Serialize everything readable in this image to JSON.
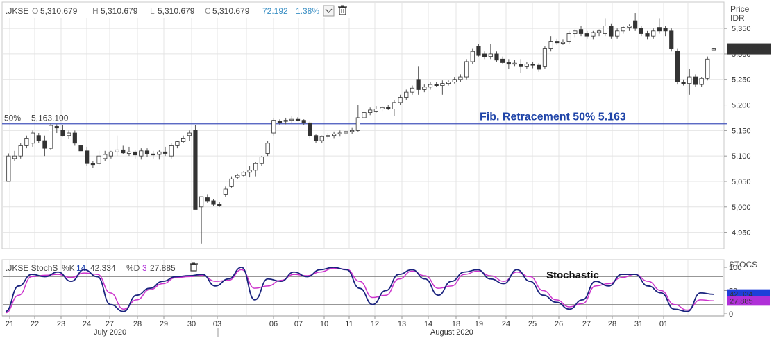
{
  "price_header": {
    "symbol": ".JKSE",
    "o_label": "O",
    "o_value": "5,310.679",
    "h_label": "H",
    "h_value": "5,310.679",
    "l_label": "L",
    "l_value": "5,310.679",
    "c_label": "C",
    "c_value": "5,310.679",
    "change": "72.192",
    "change_pct": "1.38%"
  },
  "price_axis_title": [
    "Price",
    "IDR"
  ],
  "fib": {
    "level_label": "50%",
    "level_value_label": "5,163.100",
    "annotation": "Fib. Retracement 50%  5.163",
    "value": 5163.1
  },
  "last_price_tag": "5,310.679",
  "stoch_header": {
    "name": ".JKSE StochS",
    "k_label": "%K",
    "k_period": "14",
    "k_value": "42.334",
    "d_label": "%D",
    "d_period": "3",
    "d_value": "27.885"
  },
  "stoch_axis_title": "STOCS",
  "stoch_annotation": "Stochastic",
  "stoch_tags": {
    "k": "42.334",
    "d": "27.885"
  },
  "month_labels": [
    "July 2020",
    "August 2020"
  ],
  "colors": {
    "k_line": "#1a237e",
    "d_line": "#cc33cc",
    "fib_line": "#4455bb",
    "tag_k": "#1e3fd9",
    "tag_d": "#b030d8",
    "change": "#3a8fc4"
  },
  "chart_data": [
    {
      "type": "candlestick",
      "ylabel": "Price IDR",
      "ylim": [
        4925,
        5395
      ],
      "yticks": [
        4950,
        5000,
        5050,
        5100,
        5150,
        5200,
        5250,
        5300,
        5350
      ],
      "ytick_labels": [
        "4,950",
        "5,000",
        "5,050",
        "5,100",
        "5,150",
        "5,200",
        "5,250",
        "5,300",
        "5,350"
      ],
      "xtick_labels": [
        "21",
        "22",
        "23",
        "24",
        "27",
        "28",
        "29",
        "30",
        "03",
        "06",
        "07",
        "10",
        "11",
        "12",
        "13",
        "14",
        "18",
        "19",
        "24",
        "25",
        "26",
        "27",
        "28",
        "31",
        "01"
      ],
      "candles": [
        {
          "o": 5050,
          "h": 5105,
          "l": 5050,
          "c": 5100
        },
        {
          "o": 5095,
          "h": 5110,
          "l": 5090,
          "c": 5100
        },
        {
          "o": 5100,
          "h": 5125,
          "l": 5095,
          "c": 5120
        },
        {
          "o": 5120,
          "h": 5140,
          "l": 5115,
          "c": 5135
        },
        {
          "o": 5125,
          "h": 5150,
          "l": 5118,
          "c": 5145
        },
        {
          "o": 5140,
          "h": 5145,
          "l": 5125,
          "c": 5130
        },
        {
          "o": 5130,
          "h": 5140,
          "l": 5100,
          "c": 5115
        },
        {
          "o": 5115,
          "h": 5165,
          "l": 5112,
          "c": 5160
        },
        {
          "o": 5158,
          "h": 5162,
          "l": 5145,
          "c": 5155
        },
        {
          "o": 5150,
          "h": 5160,
          "l": 5138,
          "c": 5140
        },
        {
          "o": 5140,
          "h": 5150,
          "l": 5133,
          "c": 5145
        },
        {
          "o": 5145,
          "h": 5150,
          "l": 5120,
          "c": 5125
        },
        {
          "o": 5120,
          "h": 5130,
          "l": 5105,
          "c": 5110
        },
        {
          "o": 5110,
          "h": 5118,
          "l": 5080,
          "c": 5085
        },
        {
          "o": 5085,
          "h": 5090,
          "l": 5077,
          "c": 5083
        },
        {
          "o": 5085,
          "h": 5110,
          "l": 5082,
          "c": 5100
        },
        {
          "o": 5095,
          "h": 5110,
          "l": 5090,
          "c": 5103
        },
        {
          "o": 5100,
          "h": 5110,
          "l": 5095,
          "c": 5108
        },
        {
          "o": 5108,
          "h": 5140,
          "l": 5100,
          "c": 5112
        },
        {
          "o": 5112,
          "h": 5120,
          "l": 5104,
          "c": 5106
        },
        {
          "o": 5105,
          "h": 5118,
          "l": 5100,
          "c": 5108
        },
        {
          "o": 5108,
          "h": 5112,
          "l": 5095,
          "c": 5102
        },
        {
          "o": 5100,
          "h": 5115,
          "l": 5093,
          "c": 5110
        },
        {
          "o": 5110,
          "h": 5115,
          "l": 5098,
          "c": 5104
        },
        {
          "o": 5104,
          "h": 5110,
          "l": 5095,
          "c": 5103
        },
        {
          "o": 5103,
          "h": 5112,
          "l": 5093,
          "c": 5108
        },
        {
          "o": 5108,
          "h": 5118,
          "l": 5100,
          "c": 5105
        },
        {
          "o": 5100,
          "h": 5125,
          "l": 5095,
          "c": 5120
        },
        {
          "o": 5120,
          "h": 5130,
          "l": 5115,
          "c": 5128
        },
        {
          "o": 5128,
          "h": 5140,
          "l": 5125,
          "c": 5135
        },
        {
          "o": 5140,
          "h": 5150,
          "l": 5130,
          "c": 5145
        },
        {
          "o": 5150,
          "h": 5160,
          "l": 4995,
          "c": 4995
        },
        {
          "o": 5000,
          "h": 5020,
          "l": 4928,
          "c": 5020
        },
        {
          "o": 5018,
          "h": 5025,
          "l": 5008,
          "c": 5012
        },
        {
          "o": 5012,
          "h": 5015,
          "l": 5002,
          "c": 5005
        },
        {
          "o": 5005,
          "h": 5010,
          "l": 5000,
          "c": 5003
        },
        {
          "o": 5025,
          "h": 5040,
          "l": 5020,
          "c": 5035
        },
        {
          "o": 5040,
          "h": 5060,
          "l": 5038,
          "c": 5055
        },
        {
          "o": 5058,
          "h": 5065,
          "l": 5055,
          "c": 5062
        },
        {
          "o": 5062,
          "h": 5070,
          "l": 5060,
          "c": 5068
        },
        {
          "o": 5068,
          "h": 5080,
          "l": 5058,
          "c": 5072
        },
        {
          "o": 5072,
          "h": 5088,
          "l": 5060,
          "c": 5085
        },
        {
          "o": 5085,
          "h": 5100,
          "l": 5080,
          "c": 5098
        },
        {
          "o": 5105,
          "h": 5130,
          "l": 5100,
          "c": 5125
        },
        {
          "o": 5145,
          "h": 5175,
          "l": 5140,
          "c": 5170
        },
        {
          "o": 5168,
          "h": 5172,
          "l": 5160,
          "c": 5165
        },
        {
          "o": 5168,
          "h": 5175,
          "l": 5162,
          "c": 5170
        },
        {
          "o": 5170,
          "h": 5178,
          "l": 5165,
          "c": 5172
        },
        {
          "o": 5172,
          "h": 5176,
          "l": 5168,
          "c": 5170
        },
        {
          "o": 5170,
          "h": 5172,
          "l": 5160,
          "c": 5165
        },
        {
          "o": 5165,
          "h": 5168,
          "l": 5135,
          "c": 5140
        },
        {
          "o": 5140,
          "h": 5142,
          "l": 5125,
          "c": 5130
        },
        {
          "o": 5130,
          "h": 5140,
          "l": 5125,
          "c": 5138
        },
        {
          "o": 5138,
          "h": 5145,
          "l": 5133,
          "c": 5140
        },
        {
          "o": 5140,
          "h": 5148,
          "l": 5135,
          "c": 5143
        },
        {
          "o": 5143,
          "h": 5150,
          "l": 5138,
          "c": 5145
        },
        {
          "o": 5145,
          "h": 5152,
          "l": 5140,
          "c": 5148
        },
        {
          "o": 5148,
          "h": 5155,
          "l": 5143,
          "c": 5150
        },
        {
          "o": 5150,
          "h": 5200,
          "l": 5148,
          "c": 5175
        },
        {
          "o": 5175,
          "h": 5190,
          "l": 5170,
          "c": 5185
        },
        {
          "o": 5185,
          "h": 5195,
          "l": 5180,
          "c": 5190
        },
        {
          "o": 5188,
          "h": 5198,
          "l": 5185,
          "c": 5192
        },
        {
          "o": 5192,
          "h": 5198,
          "l": 5188,
          "c": 5195
        },
        {
          "o": 5195,
          "h": 5200,
          "l": 5190,
          "c": 5192
        },
        {
          "o": 5192,
          "h": 5210,
          "l": 5178,
          "c": 5205
        },
        {
          "o": 5205,
          "h": 5220,
          "l": 5200,
          "c": 5215
        },
        {
          "o": 5215,
          "h": 5230,
          "l": 5210,
          "c": 5225
        },
        {
          "o": 5225,
          "h": 5238,
          "l": 5220,
          "c": 5233
        },
        {
          "o": 5250,
          "h": 5275,
          "l": 5220,
          "c": 5230
        },
        {
          "o": 5230,
          "h": 5240,
          "l": 5225,
          "c": 5235
        },
        {
          "o": 5235,
          "h": 5245,
          "l": 5230,
          "c": 5240
        },
        {
          "o": 5240,
          "h": 5245,
          "l": 5235,
          "c": 5238
        },
        {
          "o": 5238,
          "h": 5248,
          "l": 5220,
          "c": 5242
        },
        {
          "o": 5242,
          "h": 5248,
          "l": 5238,
          "c": 5245
        },
        {
          "o": 5245,
          "h": 5255,
          "l": 5242,
          "c": 5250
        },
        {
          "o": 5250,
          "h": 5260,
          "l": 5245,
          "c": 5255
        },
        {
          "o": 5255,
          "h": 5290,
          "l": 5250,
          "c": 5285
        },
        {
          "o": 5285,
          "h": 5310,
          "l": 5280,
          "c": 5305
        },
        {
          "o": 5315,
          "h": 5320,
          "l": 5295,
          "c": 5297
        },
        {
          "o": 5300,
          "h": 5305,
          "l": 5290,
          "c": 5295
        },
        {
          "o": 5295,
          "h": 5320,
          "l": 5290,
          "c": 5300
        },
        {
          "o": 5300,
          "h": 5305,
          "l": 5285,
          "c": 5288
        },
        {
          "o": 5290,
          "h": 5295,
          "l": 5280,
          "c": 5283
        },
        {
          "o": 5283,
          "h": 5290,
          "l": 5270,
          "c": 5280
        },
        {
          "o": 5280,
          "h": 5288,
          "l": 5275,
          "c": 5282
        },
        {
          "o": 5280,
          "h": 5290,
          "l": 5262,
          "c": 5275
        },
        {
          "o": 5275,
          "h": 5285,
          "l": 5270,
          "c": 5280
        },
        {
          "o": 5280,
          "h": 5285,
          "l": 5272,
          "c": 5278
        },
        {
          "o": 5278,
          "h": 5282,
          "l": 5265,
          "c": 5270
        },
        {
          "o": 5275,
          "h": 5315,
          "l": 5270,
          "c": 5310
        },
        {
          "o": 5310,
          "h": 5335,
          "l": 5305,
          "c": 5325
        },
        {
          "o": 5325,
          "h": 5330,
          "l": 5318,
          "c": 5322
        },
        {
          "o": 5322,
          "h": 5328,
          "l": 5318,
          "c": 5323
        },
        {
          "o": 5325,
          "h": 5345,
          "l": 5320,
          "c": 5340
        },
        {
          "o": 5340,
          "h": 5348,
          "l": 5332,
          "c": 5345
        },
        {
          "o": 5348,
          "h": 5355,
          "l": 5335,
          "c": 5340
        },
        {
          "o": 5340,
          "h": 5345,
          "l": 5330,
          "c": 5335
        },
        {
          "o": 5335,
          "h": 5345,
          "l": 5328,
          "c": 5342
        },
        {
          "o": 5342,
          "h": 5348,
          "l": 5335,
          "c": 5345
        },
        {
          "o": 5340,
          "h": 5370,
          "l": 5335,
          "c": 5355
        },
        {
          "o": 5355,
          "h": 5360,
          "l": 5330,
          "c": 5335
        },
        {
          "o": 5335,
          "h": 5350,
          "l": 5330,
          "c": 5345
        },
        {
          "o": 5345,
          "h": 5355,
          "l": 5340,
          "c": 5352
        },
        {
          "o": 5352,
          "h": 5358,
          "l": 5345,
          "c": 5355
        },
        {
          "o": 5365,
          "h": 5380,
          "l": 5345,
          "c": 5350
        },
        {
          "o": 5350,
          "h": 5355,
          "l": 5335,
          "c": 5340
        },
        {
          "o": 5340,
          "h": 5345,
          "l": 5328,
          "c": 5335
        },
        {
          "o": 5335,
          "h": 5350,
          "l": 5330,
          "c": 5345
        },
        {
          "o": 5352,
          "h": 5370,
          "l": 5340,
          "c": 5345
        },
        {
          "o": 5350,
          "h": 5355,
          "l": 5335,
          "c": 5345
        },
        {
          "o": 5345,
          "h": 5350,
          "l": 5305,
          "c": 5310
        },
        {
          "o": 5305,
          "h": 5310,
          "l": 5240,
          "c": 5245
        },
        {
          "o": 5245,
          "h": 5250,
          "l": 5238,
          "c": 5242
        },
        {
          "o": 5242,
          "h": 5270,
          "l": 5220,
          "c": 5255
        },
        {
          "o": 5255,
          "h": 5260,
          "l": 5235,
          "c": 5240
        },
        {
          "o": 5240,
          "h": 5255,
          "l": 5235,
          "c": 5252
        },
        {
          "o": 5252,
          "h": 5295,
          "l": 5248,
          "c": 5290
        },
        {
          "o": 5310,
          "h": 5312,
          "l": 5309,
          "c": 5310
        }
      ]
    },
    {
      "type": "line",
      "ylabel": "STOCS",
      "ylim": [
        -3,
        112
      ],
      "yticks": [
        0,
        50,
        100
      ],
      "ytick_labels": [
        "0",
        "50",
        "100"
      ],
      "reference_lines": [
        20,
        80
      ],
      "series": [
        {
          "name": "%K",
          "values": [
            5,
            60,
            85,
            80,
            90,
            70,
            95,
            80,
            20,
            5,
            40,
            55,
            70,
            80,
            82,
            85,
            60,
            75,
            100,
            30,
            75,
            70,
            90,
            80,
            95,
            100,
            95,
            55,
            20,
            50,
            85,
            95,
            75,
            40,
            70,
            90,
            95,
            75,
            65,
            95,
            70,
            40,
            25,
            10,
            30,
            70,
            60,
            85,
            85,
            60,
            45,
            10,
            5,
            45,
            42
          ]
        },
        {
          "name": "%D",
          "values": [
            2,
            40,
            80,
            83,
            85,
            78,
            88,
            85,
            45,
            10,
            30,
            52,
            65,
            78,
            80,
            83,
            70,
            72,
            95,
            55,
            60,
            72,
            85,
            82,
            90,
            98,
            96,
            70,
            35,
            40,
            75,
            92,
            82,
            55,
            60,
            85,
            92,
            82,
            70,
            90,
            80,
            50,
            30,
            15,
            22,
            60,
            65,
            78,
            85,
            70,
            50,
            20,
            8,
            30,
            28
          ]
        }
      ]
    }
  ]
}
